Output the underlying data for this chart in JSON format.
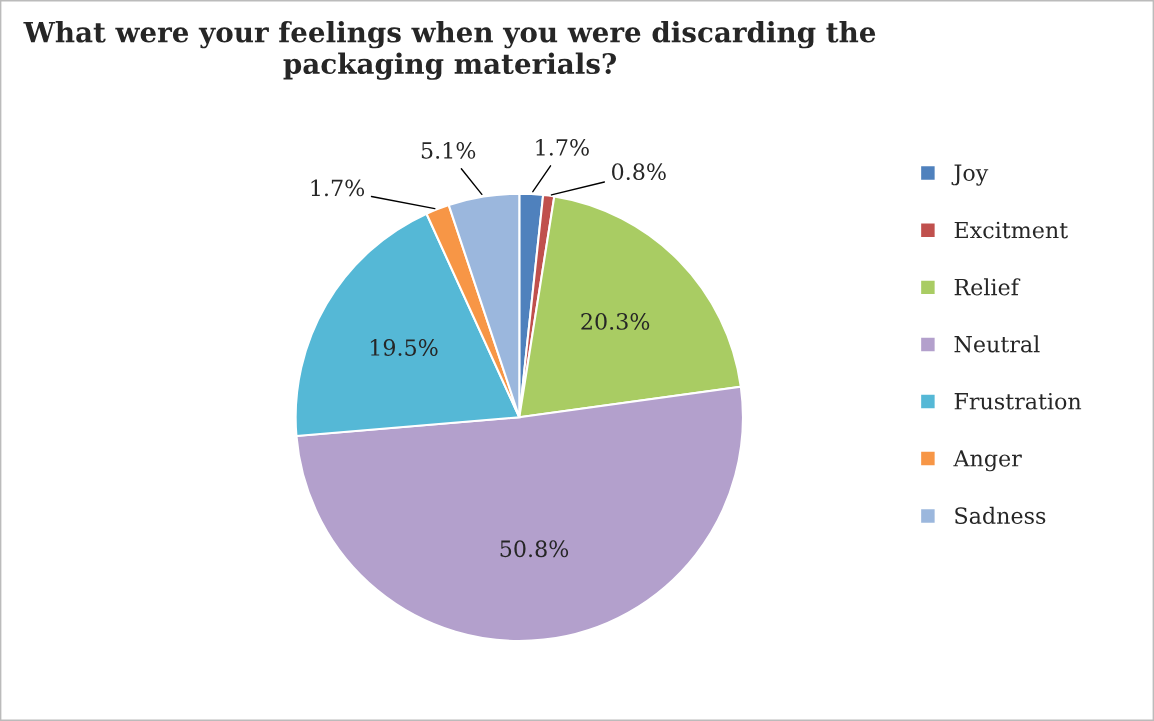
{
  "chart_data": {
    "type": "pie",
    "title": "What were your feelings when you were discarding the packaging materials?",
    "categories": [
      "Joy",
      "Excitment",
      "Relief",
      "Neutral",
      "Frustration",
      "Anger",
      "Sadness"
    ],
    "values": [
      1.7,
      0.8,
      20.3,
      50.8,
      19.5,
      1.7,
      5.1
    ],
    "value_labels": [
      "1.7%",
      "0.8%",
      "20.3%",
      "50.8%",
      "19.5%",
      "1.7%",
      "5.1%"
    ],
    "colors": [
      "#4f81bd",
      "#c0504d",
      "#a9cc63",
      "#b3a0cc",
      "#55b8d6",
      "#f79646",
      "#9bb7dd"
    ],
    "legend": "right"
  }
}
